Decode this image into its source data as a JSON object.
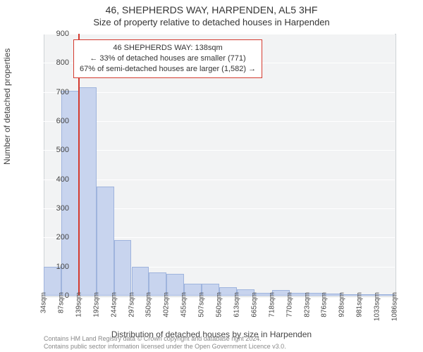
{
  "header": {
    "address": "46, SHEPHERDS WAY, HARPENDEN, AL5 3HF",
    "subtitle": "Size of property relative to detached houses in Harpenden"
  },
  "chart": {
    "type": "histogram",
    "ylabel": "Number of detached properties",
    "xlabel": "Distribution of detached houses by size in Harpenden",
    "ylim": [
      0,
      900
    ],
    "ytick_step": 100,
    "plot_bg": "#f2f3f4",
    "grid_color": "#ffffff",
    "bar_fill": "#c8d4ee",
    "bar_border": "#9fb4dd",
    "marker_color": "#d43a2f",
    "marker_value_sqm": 138,
    "x_start": 34,
    "x_bin_width": 52.63,
    "x_ticks": [
      "34sqm",
      "87sqm",
      "139sqm",
      "192sqm",
      "244sqm",
      "297sqm",
      "350sqm",
      "402sqm",
      "455sqm",
      "507sqm",
      "560sqm",
      "613sqm",
      "665sqm",
      "718sqm",
      "770sqm",
      "823sqm",
      "876sqm",
      "928sqm",
      "981sqm",
      "1033sqm",
      "1086sqm"
    ],
    "values": [
      100,
      705,
      715,
      375,
      190,
      100,
      80,
      75,
      40,
      40,
      30,
      22,
      10,
      20,
      10,
      10,
      8,
      0,
      5,
      3
    ],
    "callout": {
      "line1": "46 SHEPHERDS WAY: 138sqm",
      "line2": "← 33% of detached houses are smaller (771)",
      "line3": "67% of semi-detached houses are larger (1,582) →"
    }
  },
  "credit": {
    "line1": "Contains HM Land Registry data © Crown copyright and database right 2024.",
    "line2": "Contains public sector information licensed under the Open Government Licence v3.0."
  }
}
